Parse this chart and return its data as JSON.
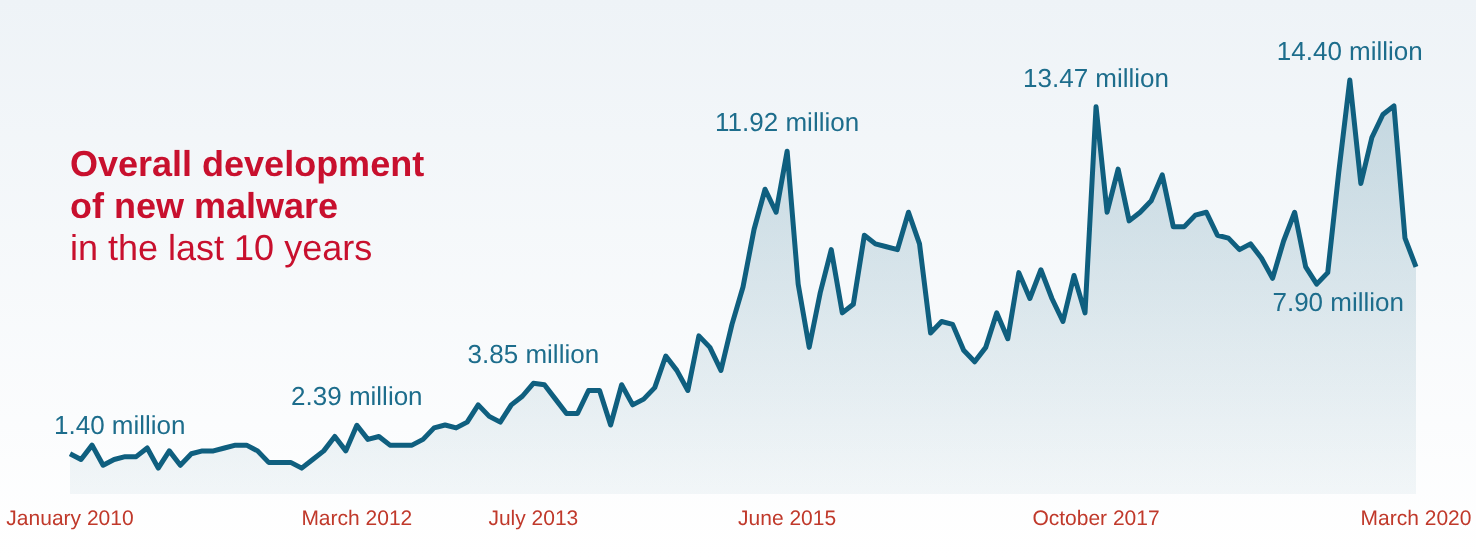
{
  "chart_data": {
    "type": "area",
    "title": "Overall development of new malware",
    "subtitle": "in the last 10 years",
    "categories": [
      "January 2010",
      null,
      null,
      null,
      null,
      null,
      null,
      null,
      null,
      null,
      null,
      null,
      null,
      null,
      null,
      null,
      null,
      null,
      null,
      null,
      null,
      null,
      null,
      null,
      null,
      null,
      "March 2012",
      null,
      null,
      null,
      null,
      null,
      null,
      null,
      null,
      null,
      null,
      null,
      null,
      null,
      null,
      null,
      "July 2013",
      null,
      null,
      null,
      null,
      null,
      null,
      null,
      null,
      null,
      null,
      null,
      null,
      null,
      null,
      null,
      null,
      null,
      null,
      null,
      null,
      null,
      null,
      "June 2015",
      null,
      null,
      null,
      null,
      null,
      null,
      null,
      null,
      null,
      null,
      null,
      null,
      null,
      null,
      null,
      null,
      null,
      null,
      null,
      null,
      null,
      null,
      null,
      null,
      null,
      null,
      null,
      "October 2017",
      null,
      null,
      null,
      null,
      null,
      null,
      null,
      null,
      null,
      null,
      null,
      null,
      null,
      null,
      null,
      null,
      null,
      null,
      null,
      null,
      null,
      null,
      null,
      null,
      null,
      null,
      null,
      null,
      "March 2020"
    ],
    "series": [
      {
        "color": "#0f5f7f",
        "values": [
          1.4,
          1.2,
          1.7,
          1.0,
          1.2,
          1.3,
          1.3,
          1.6,
          0.9,
          1.5,
          1.0,
          1.4,
          1.5,
          1.5,
          1.6,
          1.7,
          1.7,
          1.5,
          1.1,
          1.1,
          1.1,
          0.9,
          1.2,
          1.5,
          2.0,
          1.5,
          2.39,
          1.9,
          2.0,
          1.7,
          1.7,
          1.7,
          1.9,
          2.3,
          2.4,
          2.3,
          2.5,
          3.1,
          2.7,
          2.5,
          3.1,
          3.4,
          3.85,
          3.8,
          3.3,
          2.8,
          2.8,
          3.6,
          3.6,
          2.4,
          3.8,
          3.1,
          3.3,
          3.7,
          4.8,
          4.3,
          3.6,
          5.5,
          5.1,
          4.3,
          5.9,
          7.2,
          9.2,
          10.6,
          9.8,
          11.92,
          7.3,
          5.1,
          7.0,
          8.5,
          6.3,
          6.6,
          9.0,
          8.7,
          8.6,
          8.5,
          9.8,
          8.7,
          5.6,
          6.0,
          5.9,
          5.0,
          4.6,
          5.1,
          6.3,
          5.4,
          7.7,
          6.8,
          7.8,
          6.8,
          6.0,
          7.6,
          6.3,
          13.47,
          9.8,
          11.3,
          9.5,
          9.8,
          10.2,
          11.1,
          9.3,
          9.3,
          9.7,
          9.8,
          9.0,
          8.9,
          8.5,
          8.7,
          8.2,
          7.5,
          8.8,
          9.8,
          7.9,
          7.3,
          7.7,
          11.2,
          14.4,
          10.8,
          12.4,
          13.2,
          13.5,
          8.9,
          7.9
        ],
        "value_labels": [
          "1.40 million",
          null,
          null,
          null,
          null,
          null,
          null,
          null,
          null,
          null,
          null,
          null,
          null,
          null,
          null,
          null,
          null,
          null,
          null,
          null,
          null,
          null,
          null,
          null,
          null,
          null,
          "2.39 million",
          null,
          null,
          null,
          null,
          null,
          null,
          null,
          null,
          null,
          null,
          null,
          null,
          null,
          null,
          null,
          "3.85 million",
          null,
          null,
          null,
          null,
          null,
          null,
          null,
          null,
          null,
          null,
          null,
          null,
          null,
          null,
          null,
          null,
          null,
          null,
          null,
          null,
          null,
          null,
          "11.92 million",
          null,
          null,
          null,
          null,
          null,
          null,
          null,
          null,
          null,
          null,
          null,
          null,
          null,
          null,
          null,
          null,
          null,
          null,
          null,
          null,
          null,
          null,
          null,
          null,
          null,
          null,
          null,
          "13.47 million",
          null,
          null,
          null,
          null,
          null,
          null,
          null,
          null,
          null,
          null,
          null,
          null,
          null,
          null,
          null,
          null,
          null,
          null,
          null,
          null,
          null,
          null,
          "14.40 million",
          null,
          null,
          null,
          null,
          null,
          "7.90 million"
        ]
      }
    ]
  }
}
